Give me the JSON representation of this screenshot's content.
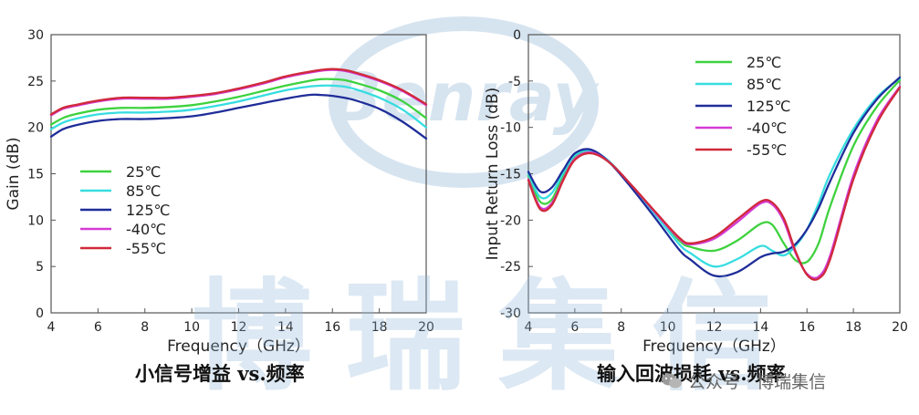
{
  "watermark": {
    "logo_text": "Benray",
    "text": "博瑞集信",
    "account_label": "公众号",
    "account_separator": "·",
    "account_name": "博瑞集信"
  },
  "colors": {
    "25C": "#3ed23e",
    "85C": "#37dde0",
    "125C": "#1f2d99",
    "-40C": "#d43ad4",
    "-55C": "#d02a3a",
    "watermark": "#8fb6da"
  },
  "chart_data": [
    {
      "type": "line",
      "title": "小信号增益 vs.频率",
      "xlabel": "Frequency（GHz）",
      "ylabel": "Gain (dB)",
      "xlim": [
        4,
        20
      ],
      "ylim": [
        0,
        30
      ],
      "xticks": [
        4,
        6,
        8,
        10,
        12,
        14,
        16,
        18,
        20
      ],
      "yticks": [
        0,
        5,
        10,
        15,
        20,
        25,
        30
      ],
      "grid": false,
      "legend_position": "lower-left",
      "series": [
        {
          "name": "25℃",
          "color_key": "25C",
          "x": [
            4,
            4.5,
            5,
            6,
            7,
            8,
            9,
            10,
            11,
            12,
            13,
            14,
            15,
            15.5,
            16,
            16.5,
            17,
            18,
            19,
            20
          ],
          "y": [
            20.3,
            21.0,
            21.4,
            21.9,
            22.1,
            22.1,
            22.2,
            22.4,
            22.8,
            23.3,
            23.9,
            24.5,
            25.0,
            25.2,
            25.2,
            25.1,
            24.8,
            24.0,
            22.8,
            21.0
          ]
        },
        {
          "name": "85℃",
          "color_key": "85C",
          "x": [
            4,
            4.5,
            5,
            6,
            7,
            8,
            9,
            10,
            11,
            12,
            13,
            14,
            15,
            15.5,
            16,
            16.5,
            17,
            18,
            19,
            20
          ],
          "y": [
            19.8,
            20.5,
            20.9,
            21.4,
            21.6,
            21.6,
            21.7,
            21.9,
            22.3,
            22.8,
            23.4,
            24.0,
            24.4,
            24.5,
            24.5,
            24.4,
            24.1,
            23.2,
            21.9,
            20.0
          ]
        },
        {
          "name": "125℃",
          "color_key": "125C",
          "x": [
            4,
            4.5,
            5,
            6,
            7,
            8,
            9,
            10,
            11,
            12,
            13,
            14,
            15,
            15.5,
            16,
            16.5,
            17,
            18,
            19,
            20
          ],
          "y": [
            19.0,
            19.8,
            20.2,
            20.7,
            20.9,
            20.9,
            21.0,
            21.2,
            21.6,
            22.1,
            22.6,
            23.1,
            23.5,
            23.5,
            23.4,
            23.2,
            22.9,
            22.0,
            20.6,
            18.8
          ]
        },
        {
          "name": "-40℃",
          "color_key": "-40C",
          "x": [
            4,
            4.5,
            5,
            6,
            7,
            8,
            9,
            10,
            11,
            12,
            13,
            14,
            15,
            15.5,
            16,
            16.5,
            17,
            18,
            19,
            20
          ],
          "y": [
            21.3,
            22.0,
            22.3,
            22.8,
            23.1,
            23.1,
            23.1,
            23.3,
            23.6,
            24.1,
            24.7,
            25.4,
            25.9,
            26.1,
            26.2,
            26.1,
            25.8,
            25.0,
            23.9,
            22.4
          ]
        },
        {
          "name": "-55℃",
          "color_key": "-55C",
          "x": [
            4,
            4.5,
            5,
            6,
            7,
            8,
            9,
            10,
            11,
            12,
            13,
            14,
            15,
            15.5,
            16,
            16.5,
            17,
            18,
            19,
            20
          ],
          "y": [
            21.4,
            22.1,
            22.4,
            22.9,
            23.2,
            23.2,
            23.2,
            23.4,
            23.7,
            24.2,
            24.8,
            25.5,
            26.0,
            26.2,
            26.3,
            26.2,
            25.9,
            25.1,
            24.0,
            22.5
          ]
        }
      ]
    },
    {
      "type": "line",
      "title": "输入回波损耗 vs.频率",
      "xlabel": "Frequency（GHz）",
      "ylabel": "Input Return Loss (dB)",
      "xlim": [
        4,
        20
      ],
      "ylim": [
        -30,
        0
      ],
      "xticks": [
        4,
        6,
        8,
        10,
        12,
        14,
        16,
        18,
        20
      ],
      "yticks": [
        0,
        -5,
        -10,
        -15,
        -20,
        -25,
        -30
      ],
      "grid": false,
      "legend_position": "upper-left",
      "series": [
        {
          "name": "25℃",
          "color_key": "25C",
          "x": [
            4,
            4.5,
            5,
            5.5,
            6,
            6.7,
            7.5,
            8.5,
            9.5,
            10.5,
            11,
            12,
            13,
            14,
            14.5,
            15,
            15.5,
            16,
            16.5,
            17,
            18,
            19,
            20
          ],
          "y": [
            -15.2,
            -18.0,
            -17.8,
            -15.2,
            -13.2,
            -12.6,
            -13.8,
            -16.5,
            -19.3,
            -22.2,
            -22.9,
            -23.3,
            -22.2,
            -20.4,
            -20.5,
            -22.5,
            -24.3,
            -24.5,
            -22.5,
            -18.5,
            -12.0,
            -7.8,
            -4.9
          ]
        },
        {
          "name": "85℃",
          "color_key": "85C",
          "x": [
            4,
            4.5,
            5,
            5.5,
            6,
            6.7,
            7.5,
            8.5,
            9.5,
            10.5,
            11,
            12,
            13,
            14,
            14.5,
            15,
            15.5,
            16,
            16.5,
            17,
            18,
            19,
            20
          ],
          "y": [
            -15.0,
            -17.5,
            -17.1,
            -14.9,
            -13.0,
            -12.5,
            -13.7,
            -16.5,
            -19.5,
            -22.6,
            -23.6,
            -25.0,
            -24.2,
            -22.8,
            -23.3,
            -23.8,
            -22.8,
            -21.0,
            -18.2,
            -15.0,
            -10.2,
            -6.8,
            -4.7
          ]
        },
        {
          "name": "125℃",
          "color_key": "125C",
          "x": [
            4,
            4.5,
            5,
            5.5,
            6,
            6.7,
            7.5,
            8.5,
            9.5,
            10.5,
            11,
            12,
            13,
            14,
            14.5,
            15,
            15.5,
            16,
            16.5,
            17,
            18,
            19,
            20
          ],
          "y": [
            -14.8,
            -16.9,
            -16.5,
            -14.6,
            -12.8,
            -12.4,
            -13.8,
            -16.7,
            -19.9,
            -23.2,
            -24.3,
            -26.0,
            -25.6,
            -24.0,
            -23.6,
            -23.4,
            -22.6,
            -21.0,
            -18.7,
            -15.8,
            -10.6,
            -7.0,
            -4.6
          ]
        },
        {
          "name": "-40℃",
          "color_key": "-40C",
          "x": [
            4,
            4.5,
            5,
            5.5,
            6,
            6.7,
            7.5,
            8.5,
            9.5,
            10.5,
            11,
            12,
            13,
            14,
            14.5,
            15,
            15.5,
            16,
            16.5,
            17,
            18,
            19,
            20
          ],
          "y": [
            -15.6,
            -18.6,
            -18.2,
            -15.6,
            -13.4,
            -12.7,
            -13.8,
            -16.4,
            -19.3,
            -22.0,
            -22.6,
            -22.0,
            -20.2,
            -18.2,
            -18.3,
            -20.1,
            -23.5,
            -25.8,
            -26.1,
            -23.8,
            -15.2,
            -9.3,
            -5.6
          ]
        },
        {
          "name": "-55℃",
          "color_key": "-55C",
          "x": [
            4,
            4.5,
            5,
            5.5,
            6,
            6.7,
            7.5,
            8.5,
            9.5,
            10.5,
            11,
            12,
            13,
            14,
            14.5,
            15,
            15.5,
            16,
            16.5,
            17,
            18,
            19,
            20
          ],
          "y": [
            -15.7,
            -18.8,
            -18.4,
            -15.7,
            -13.5,
            -12.8,
            -13.8,
            -16.4,
            -19.2,
            -21.9,
            -22.5,
            -21.8,
            -19.9,
            -18.0,
            -18.1,
            -19.8,
            -23.3,
            -25.9,
            -26.3,
            -24.2,
            -15.6,
            -9.6,
            -5.7
          ]
        }
      ]
    }
  ]
}
